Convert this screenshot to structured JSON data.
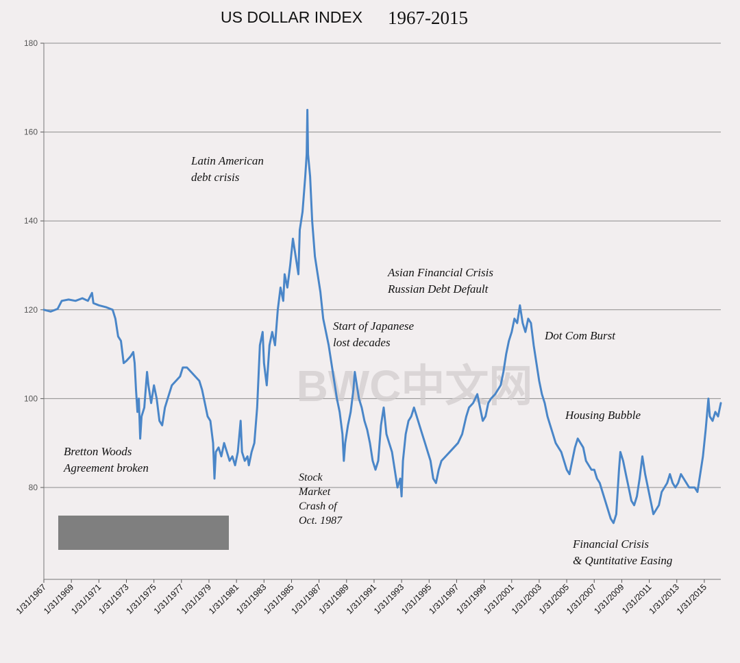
{
  "chart_data": {
    "type": "line",
    "title": "US DOLLAR INDEX",
    "title_years": "1967-2015",
    "xlabel": "",
    "ylabel": "",
    "ylim": [
      60,
      180
    ],
    "xlim": [
      1967.0,
      2016.2
    ],
    "yticks": [
      80,
      100,
      120,
      140,
      160,
      180
    ],
    "y_tick_labels": [
      "80",
      "100",
      "120",
      "140",
      "160",
      "180"
    ],
    "x_tick_labels": [
      "1/31/1967",
      "1/31/1969",
      "1/31/1971",
      "1/31/1973",
      "1/31/1975",
      "1/31/1977",
      "1/31/1979",
      "1/31/1981",
      "1/31/1983",
      "1/31/1985",
      "1/31/1987",
      "1/31/1989",
      "1/31/1991",
      "1/31/1993",
      "1/31/1995",
      "1/31/1997",
      "1/31/1999",
      "1/31/2001",
      "1/31/2003",
      "1/31/2005",
      "1/31/2007",
      "1/31/2009",
      "1/31/2011",
      "1/31/2013",
      "1/31/2015"
    ],
    "x_tick_years": [
      1967,
      1969,
      1971,
      1973,
      1975,
      1977,
      1979,
      1981,
      1983,
      1985,
      1987,
      1989,
      1991,
      1993,
      1995,
      1997,
      1999,
      2001,
      2003,
      2005,
      2007,
      2009,
      2011,
      2013,
      2015
    ],
    "grid": true,
    "series": [
      {
        "name": "US Dollar Index",
        "color": "#4a86c8",
        "points": [
          [
            1967.0,
            120
          ],
          [
            1967.5,
            119.6
          ],
          [
            1968.0,
            120.2
          ],
          [
            1968.3,
            122
          ],
          [
            1968.8,
            122.3
          ],
          [
            1969.3,
            122
          ],
          [
            1969.8,
            122.6
          ],
          [
            1970.2,
            122
          ],
          [
            1970.5,
            123.8
          ],
          [
            1970.6,
            121.5
          ],
          [
            1971.0,
            121
          ],
          [
            1971.5,
            120.6
          ],
          [
            1972.0,
            120
          ],
          [
            1972.2,
            118
          ],
          [
            1972.4,
            114
          ],
          [
            1972.6,
            113
          ],
          [
            1972.8,
            108
          ],
          [
            1973.0,
            108.5
          ],
          [
            1973.3,
            109.5
          ],
          [
            1973.5,
            110.5
          ],
          [
            1973.6,
            108
          ],
          [
            1973.7,
            102
          ],
          [
            1973.8,
            97
          ],
          [
            1973.9,
            100
          ],
          [
            1974.0,
            91
          ],
          [
            1974.1,
            96
          ],
          [
            1974.3,
            98
          ],
          [
            1974.5,
            106
          ],
          [
            1974.6,
            103
          ],
          [
            1974.8,
            99
          ],
          [
            1975.0,
            103
          ],
          [
            1975.2,
            100
          ],
          [
            1975.4,
            95
          ],
          [
            1975.6,
            94
          ],
          [
            1975.8,
            98
          ],
          [
            1976.0,
            100
          ],
          [
            1976.3,
            103
          ],
          [
            1976.6,
            104
          ],
          [
            1976.9,
            105
          ],
          [
            1977.1,
            107
          ],
          [
            1977.4,
            107
          ],
          [
            1977.7,
            106
          ],
          [
            1978.0,
            105
          ],
          [
            1978.3,
            104
          ],
          [
            1978.5,
            102
          ],
          [
            1978.7,
            99
          ],
          [
            1978.9,
            96
          ],
          [
            1979.1,
            95
          ],
          [
            1979.3,
            90
          ],
          [
            1979.4,
            82
          ],
          [
            1979.5,
            88
          ],
          [
            1979.7,
            89
          ],
          [
            1979.9,
            87
          ],
          [
            1980.1,
            90
          ],
          [
            1980.3,
            88
          ],
          [
            1980.5,
            86
          ],
          [
            1980.7,
            87
          ],
          [
            1980.9,
            85
          ],
          [
            1981.1,
            88
          ],
          [
            1981.3,
            95
          ],
          [
            1981.4,
            88
          ],
          [
            1981.6,
            86
          ],
          [
            1981.8,
            87
          ],
          [
            1981.9,
            85
          ],
          [
            1982.1,
            88
          ],
          [
            1982.3,
            90
          ],
          [
            1982.5,
            98
          ],
          [
            1982.7,
            112
          ],
          [
            1982.9,
            115
          ],
          [
            1983.0,
            108
          ],
          [
            1983.2,
            103
          ],
          [
            1983.4,
            112
          ],
          [
            1983.6,
            115
          ],
          [
            1983.8,
            112
          ],
          [
            1984.0,
            120
          ],
          [
            1984.2,
            125
          ],
          [
            1984.4,
            122
          ],
          [
            1984.5,
            128
          ],
          [
            1984.7,
            125
          ],
          [
            1984.9,
            130
          ],
          [
            1985.1,
            136
          ],
          [
            1985.3,
            132
          ],
          [
            1985.5,
            128
          ],
          [
            1985.6,
            138
          ],
          [
            1985.8,
            142
          ],
          [
            1986.0,
            150
          ],
          [
            1986.1,
            155
          ],
          [
            1986.15,
            165
          ],
          [
            1986.2,
            155
          ],
          [
            1986.35,
            150
          ],
          [
            1986.5,
            140
          ],
          [
            1986.7,
            132
          ],
          [
            1986.9,
            128
          ],
          [
            1987.1,
            124
          ],
          [
            1987.3,
            118
          ],
          [
            1987.5,
            115
          ],
          [
            1987.7,
            112
          ],
          [
            1987.9,
            108
          ],
          [
            1988.1,
            104
          ],
          [
            1988.3,
            100
          ],
          [
            1988.5,
            97
          ],
          [
            1988.7,
            92
          ],
          [
            1988.8,
            86
          ],
          [
            1988.9,
            90
          ],
          [
            1989.1,
            94
          ],
          [
            1989.3,
            97
          ],
          [
            1989.5,
            102
          ],
          [
            1989.6,
            106
          ],
          [
            1989.7,
            104
          ],
          [
            1989.9,
            100
          ],
          [
            1990.1,
            98
          ],
          [
            1990.3,
            95
          ],
          [
            1990.5,
            93
          ],
          [
            1990.7,
            90
          ],
          [
            1990.9,
            86
          ],
          [
            1991.1,
            84
          ],
          [
            1991.3,
            86
          ],
          [
            1991.5,
            94
          ],
          [
            1991.7,
            98
          ],
          [
            1991.9,
            92
          ],
          [
            1992.1,
            90
          ],
          [
            1992.3,
            88
          ],
          [
            1992.5,
            84
          ],
          [
            1992.7,
            80
          ],
          [
            1992.9,
            82
          ],
          [
            1993.0,
            78
          ],
          [
            1993.1,
            86
          ],
          [
            1993.3,
            92
          ],
          [
            1993.5,
            95
          ],
          [
            1993.7,
            96
          ],
          [
            1993.9,
            98
          ],
          [
            1994.1,
            96
          ],
          [
            1994.3,
            94
          ],
          [
            1994.5,
            92
          ],
          [
            1994.7,
            90
          ],
          [
            1994.9,
            88
          ],
          [
            1995.1,
            86
          ],
          [
            1995.3,
            82
          ],
          [
            1995.5,
            81
          ],
          [
            1995.7,
            84
          ],
          [
            1995.9,
            86
          ],
          [
            1996.2,
            87
          ],
          [
            1996.5,
            88
          ],
          [
            1996.8,
            89
          ],
          [
            1997.1,
            90
          ],
          [
            1997.4,
            92
          ],
          [
            1997.7,
            96
          ],
          [
            1997.9,
            98
          ],
          [
            1998.2,
            99
          ],
          [
            1998.5,
            101
          ],
          [
            1998.7,
            98
          ],
          [
            1998.9,
            95
          ],
          [
            1999.1,
            96
          ],
          [
            1999.3,
            99
          ],
          [
            1999.5,
            100
          ],
          [
            1999.8,
            101
          ],
          [
            2000.0,
            102
          ],
          [
            2000.2,
            103
          ],
          [
            2000.4,
            106
          ],
          [
            2000.6,
            110
          ],
          [
            2000.8,
            113
          ],
          [
            2001.0,
            115
          ],
          [
            2001.2,
            118
          ],
          [
            2001.4,
            117
          ],
          [
            2001.6,
            121
          ],
          [
            2001.8,
            117
          ],
          [
            2002.0,
            115
          ],
          [
            2002.2,
            118
          ],
          [
            2002.4,
            117
          ],
          [
            2002.6,
            112
          ],
          [
            2002.8,
            108
          ],
          [
            2003.0,
            104
          ],
          [
            2003.2,
            101
          ],
          [
            2003.4,
            99
          ],
          [
            2003.6,
            96
          ],
          [
            2003.8,
            94
          ],
          [
            2004.0,
            92
          ],
          [
            2004.2,
            90
          ],
          [
            2004.4,
            89
          ],
          [
            2004.6,
            88
          ],
          [
            2004.8,
            86
          ],
          [
            2005.0,
            84
          ],
          [
            2005.2,
            83
          ],
          [
            2005.4,
            86
          ],
          [
            2005.6,
            89
          ],
          [
            2005.8,
            91
          ],
          [
            2006.0,
            90
          ],
          [
            2006.2,
            89
          ],
          [
            2006.4,
            86
          ],
          [
            2006.6,
            85
          ],
          [
            2006.8,
            84
          ],
          [
            2007.0,
            84
          ],
          [
            2007.2,
            82
          ],
          [
            2007.4,
            81
          ],
          [
            2007.6,
            79
          ],
          [
            2007.8,
            77
          ],
          [
            2008.0,
            75
          ],
          [
            2008.2,
            73
          ],
          [
            2008.4,
            72
          ],
          [
            2008.6,
            74
          ],
          [
            2008.8,
            84
          ],
          [
            2008.9,
            88
          ],
          [
            2009.1,
            86
          ],
          [
            2009.3,
            83
          ],
          [
            2009.5,
            80
          ],
          [
            2009.7,
            77
          ],
          [
            2009.9,
            76
          ],
          [
            2010.1,
            78
          ],
          [
            2010.3,
            82
          ],
          [
            2010.5,
            87
          ],
          [
            2010.7,
            83
          ],
          [
            2010.9,
            80
          ],
          [
            2011.1,
            77
          ],
          [
            2011.3,
            74
          ],
          [
            2011.5,
            75
          ],
          [
            2011.7,
            76
          ],
          [
            2011.9,
            79
          ],
          [
            2012.1,
            80
          ],
          [
            2012.3,
            81
          ],
          [
            2012.5,
            83
          ],
          [
            2012.7,
            81
          ],
          [
            2012.9,
            80
          ],
          [
            2013.1,
            81
          ],
          [
            2013.3,
            83
          ],
          [
            2013.5,
            82
          ],
          [
            2013.7,
            81
          ],
          [
            2013.9,
            80
          ],
          [
            2014.1,
            80
          ],
          [
            2014.3,
            80
          ],
          [
            2014.5,
            79
          ],
          [
            2014.7,
            83
          ],
          [
            2014.9,
            87
          ],
          [
            2015.1,
            93
          ],
          [
            2015.3,
            100
          ],
          [
            2015.4,
            96
          ],
          [
            2015.6,
            95
          ],
          [
            2015.8,
            97
          ],
          [
            2016.0,
            96
          ],
          [
            2016.2,
            99
          ]
        ]
      }
    ],
    "annotations": [
      {
        "lines": [
          "Latin American",
          "debt crisis"
        ]
      },
      {
        "lines": [
          "Asian Financial Crisis",
          "Russian Debt Default"
        ]
      },
      {
        "lines": [
          "Start of Japanese",
          "lost decades"
        ]
      },
      {
        "lines": [
          "Dot Com Burst"
        ]
      },
      {
        "lines": [
          "Housing Bubble"
        ]
      },
      {
        "lines": [
          "Bretton Woods",
          "Agreement broken"
        ]
      },
      {
        "lines": [
          "Stock",
          "Market",
          "Crash of",
          "Oct. 1987"
        ]
      },
      {
        "lines": [
          "Financial Crisis",
          "& Quntitative Easing"
        ]
      }
    ]
  },
  "watermark": "BWC中文网",
  "colors": {
    "line": "#4a86c8",
    "grid": "#8c8c8c",
    "legend_box": "#7f7f7f",
    "background": "#f2eeef"
  }
}
